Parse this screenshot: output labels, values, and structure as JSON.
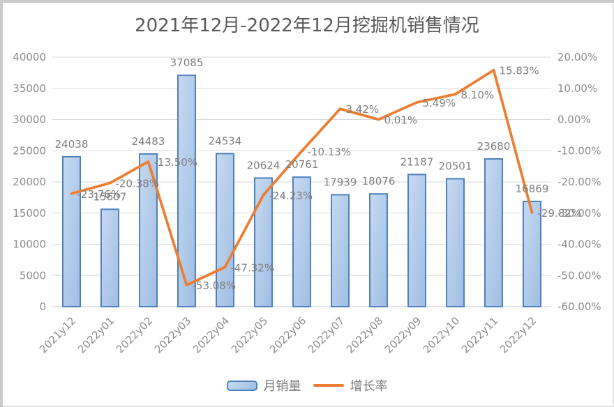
{
  "chart_data": {
    "type": "bar+line combo",
    "title": "2021年12月-2022年12月挖掘机销售情况",
    "categories": [
      "2021y12",
      "2022y01",
      "2022y02",
      "2022y03",
      "2022y04",
      "2022y05",
      "2022y06",
      "2022y07",
      "2022y08",
      "2022y09",
      "2022y10",
      "2022y11",
      "2022y12"
    ],
    "series": [
      {
        "name": "月销量",
        "type": "bar",
        "axis": "left",
        "values": [
          24038,
          15607,
          24483,
          37085,
          24534,
          20624,
          20761,
          17939,
          18076,
          21187,
          20501,
          23680,
          16869
        ],
        "data_labels": [
          "24038",
          "15607",
          "24483",
          "37085",
          "24534",
          "20624",
          "20761",
          "17939",
          "18076",
          "21187",
          "20501",
          "23680",
          "16869"
        ]
      },
      {
        "name": "增长率",
        "type": "line",
        "axis": "right",
        "values_percent": [
          -23.76,
          -20.38,
          -13.5,
          -53.08,
          -47.32,
          -24.23,
          -10.13,
          3.42,
          0.01,
          5.49,
          8.1,
          15.83,
          -29.82
        ],
        "data_labels": [
          "-23.76%",
          "-20.38%",
          "-13.50%",
          "-53.08%",
          "-47.32%",
          "-24.23%",
          "-10.13%",
          "3.42%",
          "0.01%",
          "5.49%",
          "8.10%",
          "15.83%",
          "-29.82%"
        ]
      }
    ],
    "left_axis": {
      "min": 0,
      "max": 40000,
      "step": 5000,
      "tick_labels": [
        "40000",
        "35000",
        "30000",
        "25000",
        "20000",
        "15000",
        "10000",
        "5000",
        "0"
      ]
    },
    "right_axis": {
      "min": -60,
      "max": 20,
      "step": 10,
      "tick_labels": [
        "20.00%",
        "10.00%",
        "0.00%",
        "-10.00%",
        "-20.00%",
        "-30.00%",
        "-40.00%",
        "-50.00%",
        "-60.00%"
      ]
    },
    "legend": {
      "position": "bottom",
      "bar_label": "月销量",
      "line_label": "增长率"
    },
    "grid": true,
    "colors": {
      "bar_fill": "#9fbee3",
      "bar_fill_light": "#c7d9f0",
      "bar_stroke": "#4e81bd",
      "line": "#ed7d31",
      "grid": "#d9d9d9",
      "baseline": "#c9c9c9",
      "axis_text": "#8c8c8c",
      "data_label_text": "#7f7f7f",
      "title_text": "#595959"
    }
  }
}
